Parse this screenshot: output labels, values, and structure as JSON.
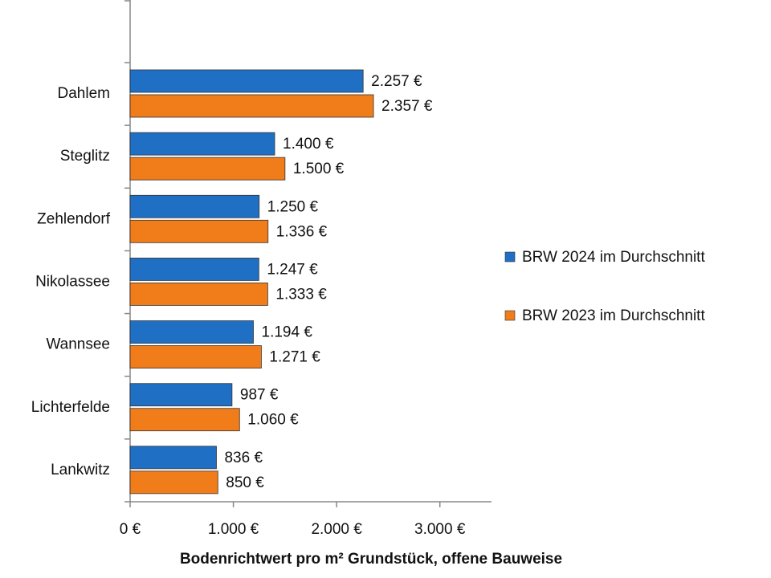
{
  "chart_data": {
    "type": "hbar",
    "x_label": "Bodenrichtwert pro m² Grundstück, offene Bauweise",
    "categories": [
      "Dahlem",
      "Steglitz",
      "Zehlendorf",
      "Nikolassee",
      "Wannsee",
      "Lichterfelde",
      "Lankwitz"
    ],
    "series": [
      {
        "name": "BRW 2024 im Durchschnitt",
        "color": "#1f6fc5",
        "values": [
          2257,
          1400,
          1250,
          1247,
          1194,
          987,
          836
        ],
        "value_labels": [
          "2.257 €",
          "1.400 €",
          "1.250 €",
          "1.247 €",
          "1.194 €",
          "987 €",
          "836 €"
        ]
      },
      {
        "name": "BRW 2023 im Durchschnitt",
        "color": "#f07c1a",
        "values": [
          2357,
          1500,
          1336,
          1333,
          1271,
          1060,
          850
        ],
        "value_labels": [
          "2.357 €",
          "1.500 €",
          "1.336 €",
          "1.333 €",
          "1.271 €",
          "1.060 €",
          "850 €"
        ]
      }
    ],
    "xlim": [
      0,
      3500
    ],
    "xticks": [
      {
        "value": 0,
        "label": "0 €"
      },
      {
        "value": 1000,
        "label": "1.000 €"
      },
      {
        "value": 2000,
        "label": "2.000 €"
      },
      {
        "value": 3000,
        "label": "3.000 €"
      }
    ],
    "legend": "right"
  }
}
